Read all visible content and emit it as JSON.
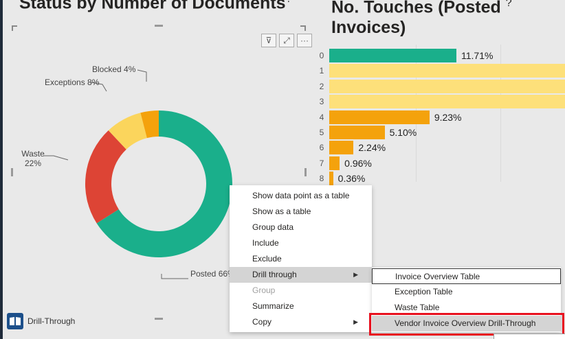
{
  "titles": {
    "left": "Status by Number of Documents",
    "right_line1": "No. Touches (Posted",
    "right_line2": "Invoices)",
    "info_glyph": "?"
  },
  "toolbar": {
    "filter_glyph": "⊽",
    "focus_glyph": "⤢",
    "more_glyph": "···"
  },
  "colors": {
    "posted": "#1aaf8b",
    "waste": "#dd4435",
    "exceptions": "#fbd55c",
    "blocked": "#f4a20c",
    "highlight_box": "#e8101e"
  },
  "chart_data": [
    {
      "type": "pie",
      "title": "Status by Number of Documents",
      "slices": [
        {
          "name": "Posted",
          "value": 66,
          "label": "Posted 66%",
          "color": "#1aaf8b"
        },
        {
          "name": "Waste",
          "value": 22,
          "label_line1": "Waste",
          "label_line2": "22%",
          "color": "#dd4435"
        },
        {
          "name": "Exceptions",
          "value": 8,
          "label": "Exceptions 8%",
          "color": "#fbd55c"
        },
        {
          "name": "Blocked",
          "value": 4,
          "label": "Blocked 4%",
          "color": "#f4a20c"
        }
      ]
    },
    {
      "type": "bar",
      "title": "No. Touches (Posted Invoices)",
      "orientation": "horizontal",
      "categories": [
        "0",
        "1",
        "2",
        "3",
        "4",
        "5",
        "6",
        "7",
        "8"
      ],
      "values": [
        11.71,
        70.4,
        70.4,
        70.4,
        9.23,
        5.1,
        2.24,
        0.96,
        0.36
      ],
      "labels": [
        "11.71%",
        "",
        "",
        "",
        "9.23%",
        "5.10%",
        "2.24%",
        "0.96%",
        "0.36%"
      ],
      "colors": [
        "#1aaf8b",
        "#fde07a",
        "#fde07a",
        "#fde07a",
        "#f4a20c",
        "#f4a20c",
        "#f4a20c",
        "#f4a20c",
        "#f4a20c"
      ]
    }
  ],
  "drill_button": {
    "label": "Drill-Through"
  },
  "context_menu": {
    "items": [
      {
        "label": "Show data point as a table",
        "disabled": false,
        "submenu": false
      },
      {
        "label": "Show as a table",
        "disabled": false,
        "submenu": false
      },
      {
        "label": "Group data",
        "disabled": false,
        "submenu": false
      },
      {
        "label": "Include",
        "disabled": false,
        "submenu": false
      },
      {
        "label": "Exclude",
        "disabled": false,
        "submenu": false
      },
      {
        "label": "Drill through",
        "disabled": false,
        "submenu": true,
        "highlighted": true
      },
      {
        "label": "Group",
        "disabled": true,
        "submenu": false
      },
      {
        "label": "Summarize",
        "disabled": false,
        "submenu": false
      },
      {
        "label": "Copy",
        "disabled": false,
        "submenu": true
      }
    ],
    "arrow_glyph": "▶"
  },
  "drill_submenu": {
    "items": [
      {
        "label": "Invoice Overview Table"
      },
      {
        "label": "Exception Table"
      },
      {
        "label": "Waste Table"
      },
      {
        "label": "Vendor Invoice Overview Drill-Through"
      }
    ]
  }
}
